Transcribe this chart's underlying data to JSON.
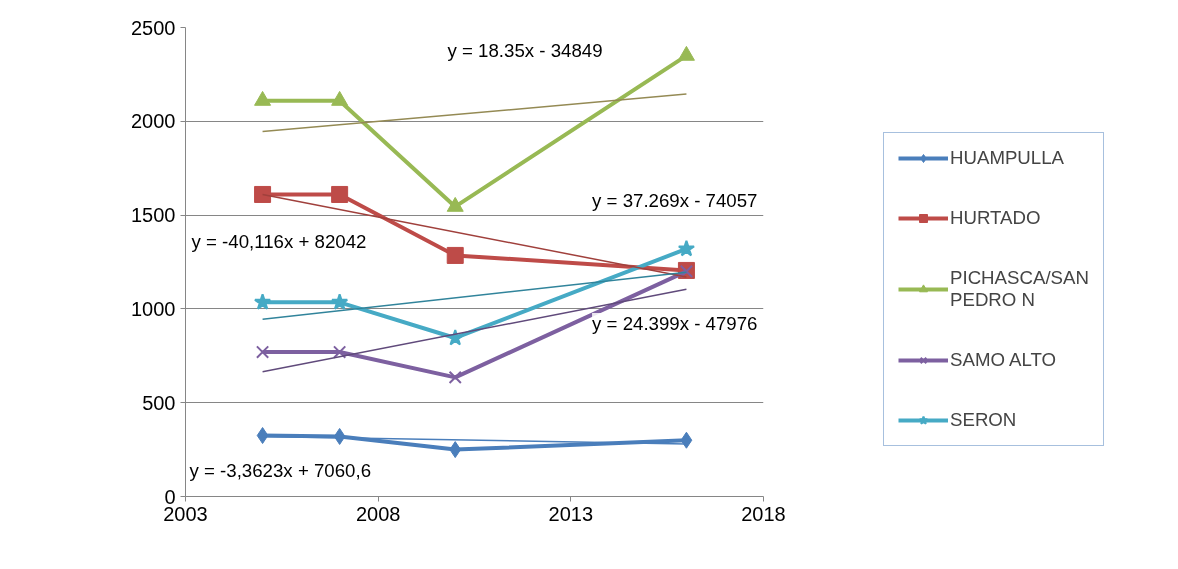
{
  "chart_data": {
    "type": "line",
    "xlim": [
      2003,
      2018
    ],
    "xticks": [
      2003,
      2008,
      2013,
      2018
    ],
    "ylim": [
      0,
      2500
    ],
    "yticks": [
      0,
      500,
      1000,
      1500,
      2000,
      2500
    ],
    "grid": "y",
    "legend": "right",
    "series": [
      {
        "name": "HUAMPULLA",
        "color": "#4a7ebb",
        "marker": "diamond",
        "x": [
          2005,
          2007,
          2010,
          2016
        ],
        "values": [
          325,
          320,
          250,
          300
        ]
      },
      {
        "name": "HURTADO",
        "color": "#be4b48",
        "marker": "square",
        "x": [
          2005,
          2007,
          2010,
          2016
        ],
        "values": [
          1610,
          1610,
          1285,
          1205
        ]
      },
      {
        "name": "PICHASCA/SAN PEDRO N",
        "color": "#98b954",
        "marker": "triangle",
        "x": [
          2005,
          2007,
          2010,
          2016
        ],
        "values": [
          2110,
          2110,
          1545,
          2350
        ]
      },
      {
        "name": "SAMO ALTO",
        "color": "#7d60a0",
        "marker": "cross",
        "x": [
          2005,
          2007,
          2010,
          2016
        ],
        "values": [
          770,
          770,
          635,
          1200
        ]
      },
      {
        "name": "SERON",
        "color": "#46aac5",
        "marker": "star",
        "x": [
          2005,
          2007,
          2010,
          2016
        ],
        "values": [
          1035,
          1035,
          845,
          1320
        ]
      },
      {
        "type": "line",
        "color": "#4a7ebb",
        "marker": "none",
        "x": [
          2005,
          2016
        ],
        "values": [
          320,
          280
        ]
      },
      {
        "type": "line",
        "color": "#a0403c",
        "marker": "none",
        "x": [
          2005,
          2016
        ],
        "values": [
          1610,
          1170
        ]
      },
      {
        "type": "line",
        "color": "#948a54",
        "marker": "none",
        "x": [
          2005,
          2016
        ],
        "values": [
          1945,
          2145
        ]
      },
      {
        "type": "line",
        "color": "#604a7b",
        "marker": "none",
        "x": [
          2005,
          2016
        ],
        "values": [
          665,
          1105
        ]
      },
      {
        "type": "line",
        "color": "#31849b",
        "marker": "none",
        "x": [
          2005,
          2016
        ],
        "values": [
          945,
          1195
        ]
      }
    ],
    "annotations": [
      "y = 18.35x - 34849",
      "y = 37.269x - 74057",
      "y = -40,116x + 82042",
      "y = 24.399x - 47976",
      "y = -3,3623x + 7060,6"
    ]
  }
}
